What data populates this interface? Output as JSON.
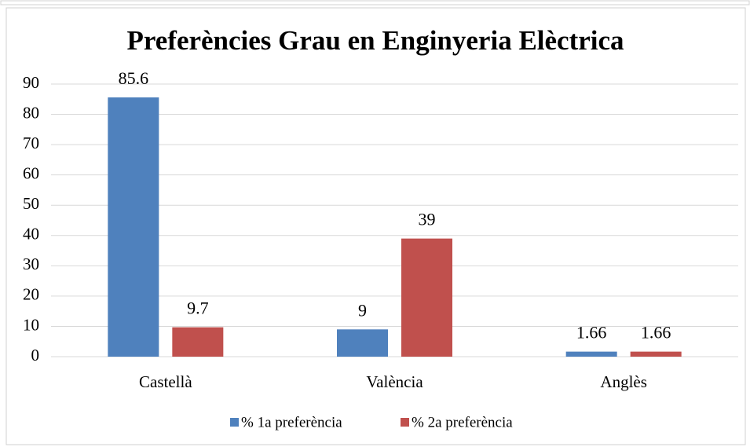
{
  "chart_data": {
    "type": "bar",
    "title": "Preferències Grau en Enginyeria Elèctrica",
    "categories": [
      "Castellà",
      "València",
      "Anglès"
    ],
    "series": [
      {
        "name": "% 1a preferència",
        "color": "#4f81bd",
        "values": [
          85.6,
          9,
          1.66
        ]
      },
      {
        "name": "% 2a preferència",
        "color": "#c0504d",
        "values": [
          9.7,
          39,
          1.66
        ]
      }
    ],
    "ylim": [
      0,
      90
    ],
    "yticks": [
      0,
      10,
      20,
      30,
      40,
      50,
      60,
      70,
      80,
      90
    ],
    "grid": true,
    "legend": "bottom"
  }
}
